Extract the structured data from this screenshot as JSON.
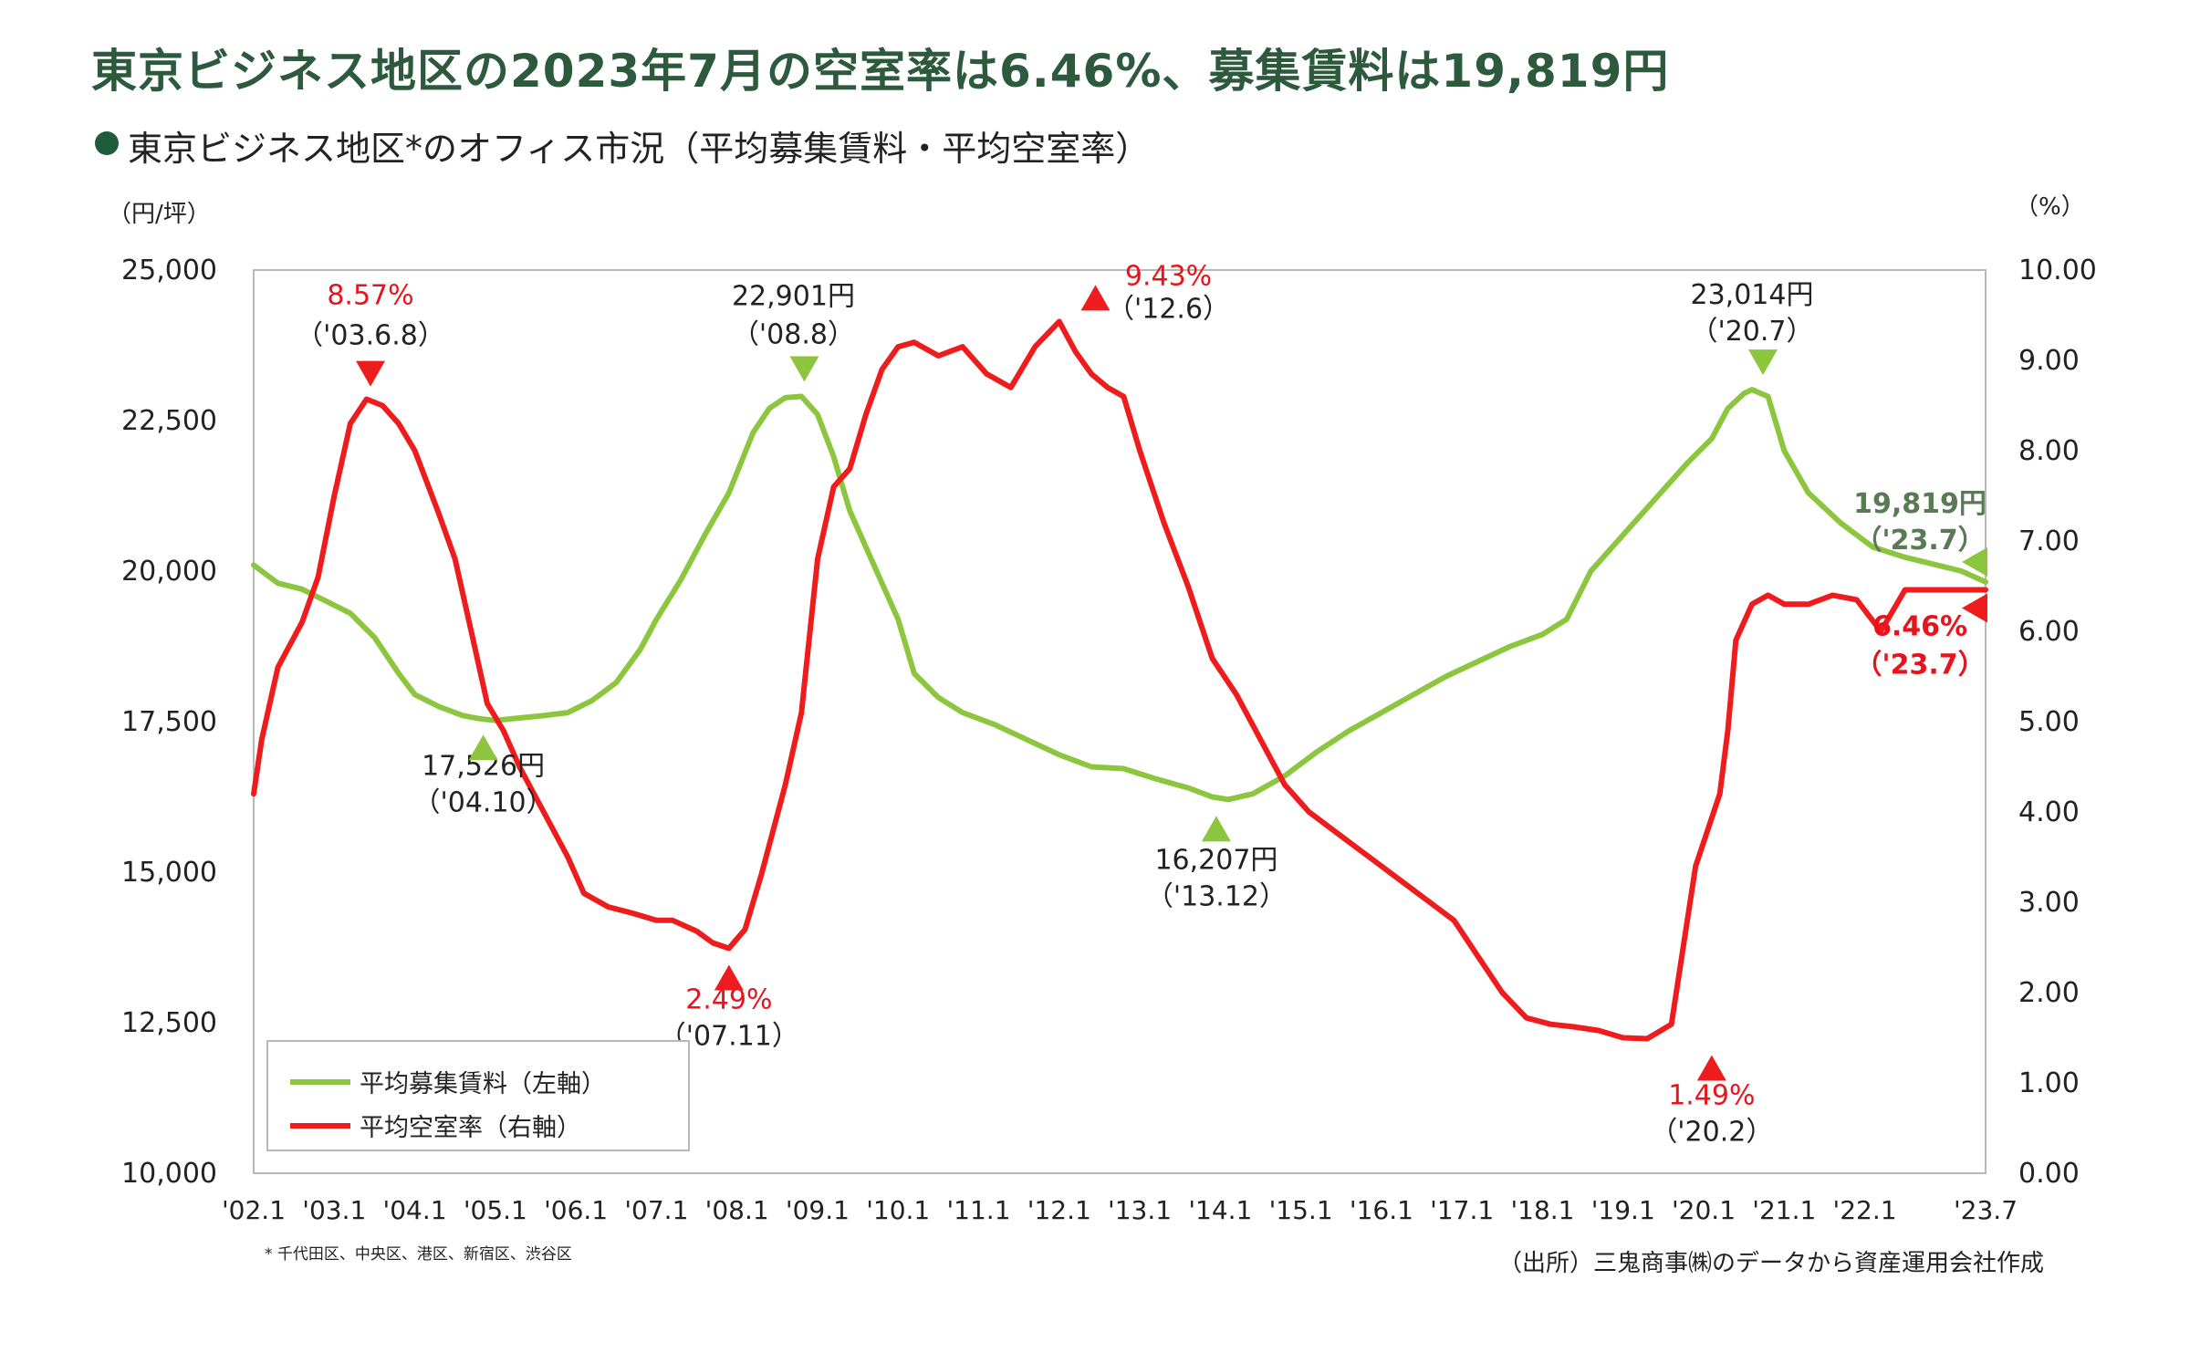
{
  "header": {
    "title": "東京ビジネス地区の2023年7月の空室率は6.46%、募集賃料は19,819円",
    "subtitle": "東京ビジネス地区*のオフィス市況（平均募集賃料・平均空室率）"
  },
  "axes": {
    "left_unit": "（円/坪）",
    "right_unit": "（%）"
  },
  "footer": {
    "footnote": "* 千代田区、中央区、港区、新宿区、渋谷区",
    "source": "（出所）三鬼商事㈱のデータから資産運用会社作成"
  },
  "legend": {
    "rent": "平均募集賃料（左軸）",
    "vacancy": "平均空室率（右軸）"
  },
  "colors": {
    "rent": "#8cc63e",
    "vacancy": "#ee1c1c",
    "rent_label": "#5a7a56",
    "vacancy_label": "#e8141c",
    "title": "#2d5a3d"
  },
  "chart_data": {
    "type": "line",
    "x_range": [
      2002.0,
      2023.5
    ],
    "x_tick_labels": [
      "'02.1",
      "'03.1",
      "'04.1",
      "'05.1",
      "'06.1",
      "'07.1",
      "'08.1",
      "'09.1",
      "'10.1",
      "'11.1",
      "'12.1",
      "'13.1",
      "'14.1",
      "'15.1",
      "'16.1",
      "'17.1",
      "'18.1",
      "'19.1",
      "'20.1",
      "'21.1",
      "'22.1",
      "'23.7"
    ],
    "x_tick_positions": [
      2002.0,
      2003.0,
      2004.0,
      2005.0,
      2006.0,
      2007.0,
      2008.0,
      2009.0,
      2010.0,
      2011.0,
      2012.0,
      2013.0,
      2014.0,
      2015.0,
      2016.0,
      2017.0,
      2018.0,
      2019.0,
      2020.0,
      2021.0,
      2022.0,
      2023.5
    ],
    "y_left": {
      "range": [
        10000,
        25000
      ],
      "ticks": [
        "10,000",
        "12,500",
        "15,000",
        "17,500",
        "20,000",
        "22,500",
        "25,000"
      ]
    },
    "y_right": {
      "range": [
        0,
        10
      ],
      "ticks": [
        "0.00",
        "1.00",
        "2.00",
        "3.00",
        "4.00",
        "5.00",
        "6.00",
        "7.00",
        "8.00",
        "9.00",
        "10.00"
      ]
    },
    "series": [
      {
        "name": "平均募集賃料（左軸）",
        "axis": "left",
        "x": [
          2002.0,
          2002.3,
          2002.6,
          2002.9,
          2003.2,
          2003.5,
          2003.8,
          2004.0,
          2004.3,
          2004.6,
          2004.8,
          2005.0,
          2005.3,
          2005.6,
          2005.9,
          2006.2,
          2006.5,
          2006.8,
          2007.0,
          2007.3,
          2007.6,
          2007.9,
          2008.2,
          2008.4,
          2008.6,
          2008.8,
          2009.0,
          2009.2,
          2009.4,
          2009.7,
          2010.0,
          2010.2,
          2010.5,
          2010.8,
          2011.2,
          2011.6,
          2012.0,
          2012.4,
          2012.8,
          2013.2,
          2013.6,
          2013.9,
          2014.1,
          2014.4,
          2014.8,
          2015.2,
          2015.6,
          2016.0,
          2016.4,
          2016.8,
          2017.2,
          2017.6,
          2018.0,
          2018.3,
          2018.6,
          2019.0,
          2019.4,
          2019.8,
          2020.1,
          2020.3,
          2020.5,
          2020.6,
          2020.8,
          2021.0,
          2021.3,
          2021.7,
          2022.1,
          2022.5,
          2022.9,
          2023.2,
          2023.5
        ],
        "values": [
          20100,
          19800,
          19700,
          19500,
          19300,
          18900,
          18300,
          17950,
          17750,
          17600,
          17550,
          17520,
          17560,
          17600,
          17650,
          17850,
          18150,
          18700,
          19200,
          19850,
          20600,
          21300,
          22300,
          22700,
          22880,
          22901,
          22600,
          21900,
          21000,
          20100,
          19200,
          18300,
          17900,
          17650,
          17450,
          17200,
          16950,
          16750,
          16720,
          16550,
          16400,
          16250,
          16207,
          16300,
          16600,
          17000,
          17350,
          17650,
          17950,
          18250,
          18500,
          18750,
          18950,
          19200,
          20000,
          20600,
          21200,
          21800,
          22200,
          22700,
          22950,
          23014,
          22900,
          22000,
          21300,
          20800,
          20400,
          20230,
          20100,
          20000,
          19819
        ]
      },
      {
        "name": "平均空室率（右軸）",
        "axis": "right",
        "x": [
          2002.0,
          2002.1,
          2002.3,
          2002.6,
          2002.8,
          2003.0,
          2003.2,
          2003.4,
          2003.6,
          2003.8,
          2004.0,
          2004.3,
          2004.5,
          2004.7,
          2004.9,
          2005.1,
          2005.3,
          2005.6,
          2005.9,
          2006.1,
          2006.4,
          2006.7,
          2007.0,
          2007.2,
          2007.5,
          2007.7,
          2007.9,
          2008.1,
          2008.3,
          2008.6,
          2008.8,
          2009.0,
          2009.2,
          2009.4,
          2009.6,
          2009.8,
          2010.0,
          2010.2,
          2010.5,
          2010.8,
          2011.1,
          2011.4,
          2011.7,
          2012.0,
          2012.2,
          2012.4,
          2012.6,
          2012.8,
          2013.0,
          2013.3,
          2013.6,
          2013.9,
          2014.2,
          2014.5,
          2014.8,
          2015.1,
          2015.4,
          2015.7,
          2016.0,
          2016.3,
          2016.6,
          2016.9,
          2017.2,
          2017.5,
          2017.8,
          2018.1,
          2018.4,
          2018.7,
          2019.0,
          2019.3,
          2019.6,
          2019.9,
          2020.2,
          2020.3,
          2020.4,
          2020.6,
          2020.8,
          2021.0,
          2021.3,
          2021.6,
          2021.9,
          2022.2,
          2022.5,
          2022.8,
          2023.0,
          2023.2,
          2023.35,
          2023.5
        ],
        "values": [
          4.2,
          4.8,
          5.6,
          6.1,
          6.6,
          7.5,
          8.3,
          8.57,
          8.5,
          8.3,
          8.0,
          7.3,
          6.8,
          6.0,
          5.2,
          4.9,
          4.5,
          4.0,
          3.5,
          3.1,
          2.95,
          2.88,
          2.8,
          2.8,
          2.68,
          2.55,
          2.49,
          2.7,
          3.3,
          4.3,
          5.1,
          6.8,
          7.6,
          7.8,
          8.4,
          8.9,
          9.15,
          9.2,
          9.05,
          9.15,
          8.85,
          8.7,
          9.15,
          9.43,
          9.1,
          8.85,
          8.7,
          8.6,
          8.0,
          7.2,
          6.5,
          5.7,
          5.3,
          4.8,
          4.3,
          4.0,
          3.8,
          3.6,
          3.4,
          3.2,
          3.0,
          2.8,
          2.4,
          2.0,
          1.72,
          1.65,
          1.62,
          1.58,
          1.5,
          1.49,
          1.65,
          3.4,
          4.2,
          4.9,
          5.9,
          6.3,
          6.4,
          6.3,
          6.3,
          6.4,
          6.35,
          6.0,
          6.46,
          6.46,
          6.46,
          6.46,
          6.46,
          6.46
        ]
      }
    ],
    "annotations": [
      {
        "series": "vacancy",
        "text": "8.57%",
        "sub": "（'03.6.8）",
        "x": 2003.45,
        "y": 8.57,
        "marker": "down"
      },
      {
        "series": "vacancy",
        "text": "2.49%",
        "sub": "（'07.11）",
        "x": 2007.9,
        "y": 2.49,
        "marker": "up"
      },
      {
        "series": "vacancy",
        "text": "9.43%",
        "sub": "（'12.6）",
        "x": 2012.45,
        "y": 9.43,
        "marker": "up"
      },
      {
        "series": "vacancy",
        "text": "1.49%",
        "sub": "（'20.2）",
        "x": 2020.1,
        "y": 1.49,
        "marker": "up"
      },
      {
        "series": "vacancy",
        "text": "6.46%",
        "sub": "（'23.7）",
        "x": 2023.5,
        "y": 6.46,
        "marker": "left"
      },
      {
        "series": "rent",
        "text": "17,526円",
        "sub": "（'04.10）",
        "x": 2004.85,
        "y": 17526,
        "marker": "up"
      },
      {
        "series": "rent",
        "text": "22,901円",
        "sub": "（'08.8）",
        "x": 2008.7,
        "y": 22901,
        "marker": "down"
      },
      {
        "series": "rent",
        "text": "16,207円",
        "sub": "（'13.12）",
        "x": 2013.95,
        "y": 16207,
        "marker": "up"
      },
      {
        "series": "rent",
        "text": "23,014円",
        "sub": "（'20.7）",
        "x": 2020.6,
        "y": 23014,
        "marker": "down"
      },
      {
        "series": "rent",
        "text": "19,819円",
        "sub": "（'23.7）",
        "x": 2023.5,
        "y": 19819,
        "marker": "left"
      }
    ]
  }
}
